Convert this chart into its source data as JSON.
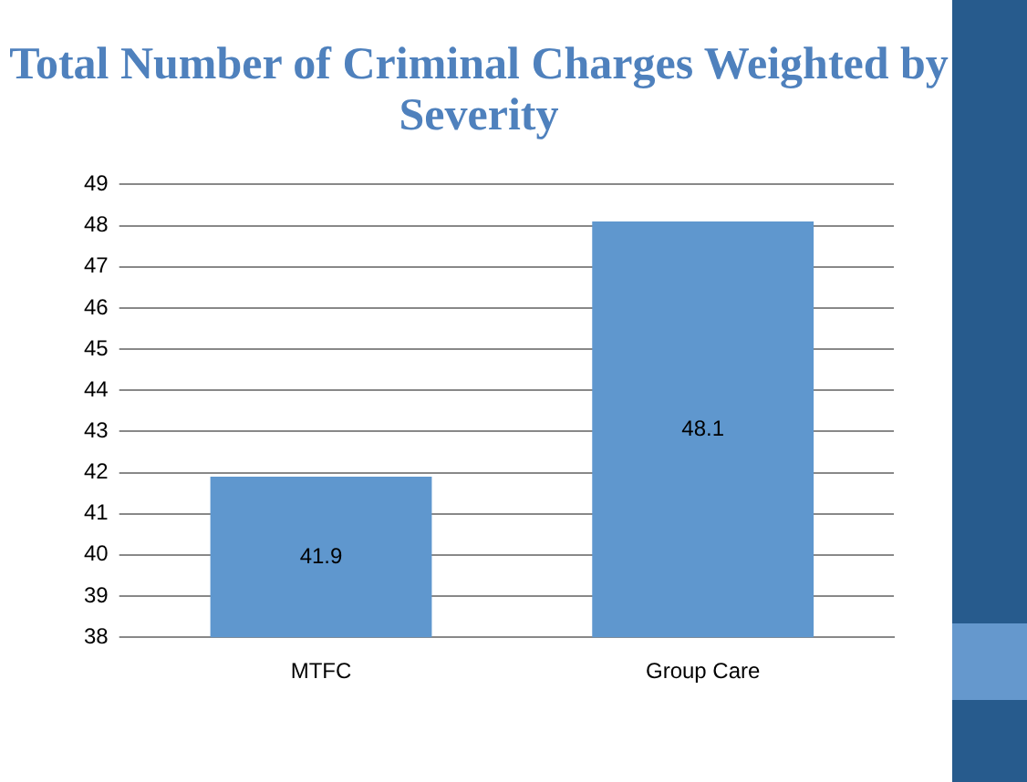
{
  "chart_data": {
    "type": "bar",
    "title": "Total Number of Criminal Charges Weighted by Severity",
    "categories": [
      "MTFC",
      "Group Care"
    ],
    "values": [
      41.9,
      48.1
    ],
    "color": "#5f97ce",
    "ylim": [
      38,
      49
    ],
    "yticks": [
      38,
      39,
      40,
      41,
      42,
      43,
      44,
      45,
      46,
      47,
      48,
      49
    ],
    "grid": "y",
    "data_labels": true,
    "legend": false
  }
}
